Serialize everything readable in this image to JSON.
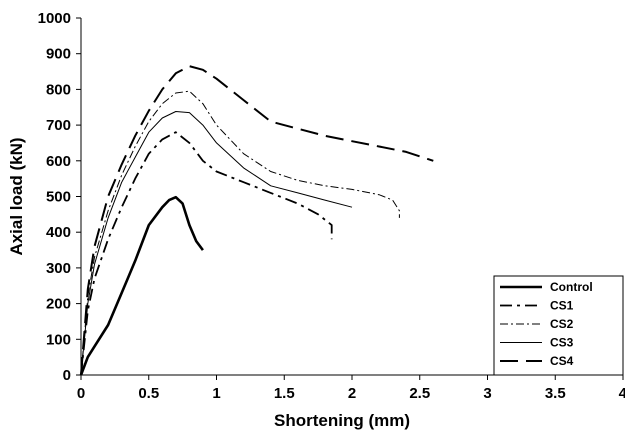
{
  "chart_data": {
    "type": "line",
    "title": "",
    "xlabel": "Shortening (mm)",
    "ylabel": "Axial load (kN)",
    "xlim": [
      0,
      4
    ],
    "ylim": [
      0,
      1000
    ],
    "x_ticks": [
      "0",
      "0.5",
      "1",
      "1.5",
      "2",
      "2.5",
      "3",
      "3.5",
      "4"
    ],
    "y_ticks": [
      "0",
      "100",
      "200",
      "300",
      "400",
      "500",
      "600",
      "700",
      "800",
      "900",
      "1000"
    ],
    "grid": false,
    "legend_position": "bottom-right",
    "series": [
      {
        "name": "Control",
        "style": "solid-thick",
        "x": [
          0,
          0.05,
          0.1,
          0.2,
          0.3,
          0.4,
          0.5,
          0.6,
          0.65,
          0.7,
          0.75,
          0.8,
          0.85,
          0.9
        ],
        "y": [
          0,
          50,
          80,
          140,
          230,
          320,
          420,
          470,
          490,
          498,
          480,
          420,
          375,
          350
        ]
      },
      {
        "name": "CS1",
        "style": "dash-dot-long",
        "x": [
          0,
          0.05,
          0.1,
          0.2,
          0.3,
          0.4,
          0.5,
          0.6,
          0.7,
          0.8,
          0.9,
          1.0,
          1.2,
          1.4,
          1.6,
          1.75,
          1.85,
          1.85
        ],
        "y": [
          0,
          180,
          270,
          380,
          470,
          550,
          620,
          660,
          680,
          650,
          600,
          570,
          540,
          510,
          480,
          450,
          420,
          380
        ]
      },
      {
        "name": "CS2",
        "style": "dash-dot-thin",
        "x": [
          0,
          0.05,
          0.1,
          0.2,
          0.3,
          0.4,
          0.5,
          0.6,
          0.7,
          0.8,
          0.9,
          1.0,
          1.2,
          1.4,
          1.6,
          1.8,
          2.0,
          2.2,
          2.3,
          2.35,
          2.35
        ],
        "y": [
          0,
          220,
          330,
          460,
          560,
          640,
          710,
          760,
          790,
          795,
          760,
          700,
          620,
          570,
          545,
          530,
          520,
          505,
          490,
          460,
          440
        ]
      },
      {
        "name": "CS3",
        "style": "solid-thin",
        "x": [
          0,
          0.05,
          0.1,
          0.2,
          0.3,
          0.4,
          0.5,
          0.6,
          0.7,
          0.8,
          0.9,
          1.0,
          1.2,
          1.4,
          1.6,
          1.8,
          2.0
        ],
        "y": [
          0,
          200,
          310,
          440,
          540,
          610,
          680,
          720,
          738,
          735,
          700,
          650,
          580,
          530,
          510,
          490,
          470
        ]
      },
      {
        "name": "CS4",
        "style": "dash-long",
        "x": [
          0,
          0.05,
          0.1,
          0.2,
          0.3,
          0.4,
          0.5,
          0.6,
          0.7,
          0.8,
          0.9,
          1.0,
          1.2,
          1.4,
          1.6,
          1.8,
          2.0,
          2.2,
          2.4,
          2.6
        ],
        "y": [
          0,
          240,
          360,
          500,
          590,
          670,
          740,
          800,
          845,
          865,
          855,
          830,
          770,
          710,
          690,
          670,
          655,
          640,
          625,
          600
        ]
      }
    ]
  },
  "colors": {
    "line": "#000000",
    "background": "#ffffff",
    "frame": "#000000"
  }
}
